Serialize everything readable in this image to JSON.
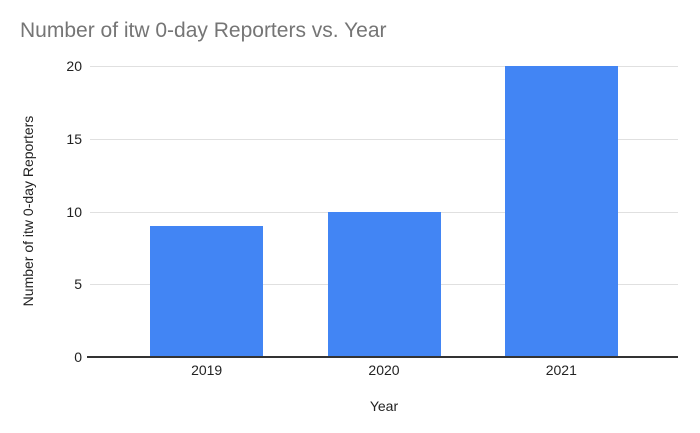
{
  "chart_data": {
    "type": "bar",
    "title": "Number of itw 0-day Reporters vs. Year",
    "xlabel": "Year",
    "ylabel": "Number of itw 0-day Reporters",
    "categories": [
      "2019",
      "2020",
      "2021"
    ],
    "values": [
      9,
      10,
      20
    ],
    "ylim": [
      0,
      20
    ],
    "yticks": [
      0,
      5,
      10,
      15,
      20
    ],
    "grid": true,
    "legend_position": "none",
    "colors": {
      "bar": "#4285f4",
      "title_text": "#757575",
      "axis_text": "#222222",
      "gridline": "#e0e0e0",
      "baseline": "#333333",
      "background": "#ffffff"
    }
  }
}
